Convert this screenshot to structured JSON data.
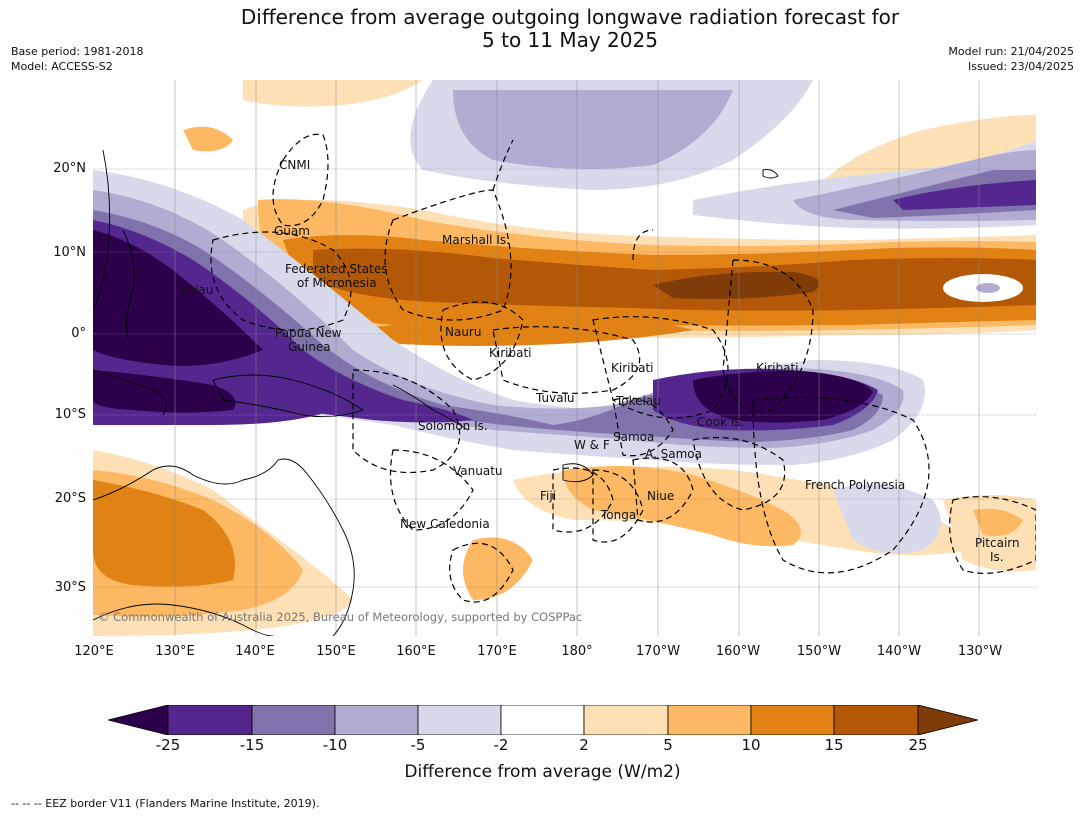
{
  "title": {
    "line1": "Difference from average outgoing longwave radiation forecast for",
    "line2": "5 to 11 May 2025"
  },
  "meta_left": {
    "base_period": "Base period: 1981-2018",
    "model": "Model: ACCESS-S2"
  },
  "meta_right": {
    "model_run": "Model run: 21/04/2025",
    "issued": "Issued: 23/04/2025"
  },
  "latitude_labels": [
    "20°N",
    "10°N",
    "0°",
    "10°S",
    "20°S",
    "30°S"
  ],
  "longitude_labels": [
    "120°E",
    "130°E",
    "140°E",
    "150°E",
    "160°E",
    "170°E",
    "180°",
    "170°W",
    "160°W",
    "150°W",
    "140°W",
    "130°W"
  ],
  "places": [
    "CNMI",
    "Guam",
    "Marshall Is.",
    "Federated States",
    "of Micronesia",
    "Palau",
    "Papua New",
    "Guinea",
    "Nauru",
    "Kiribati",
    "Kiribati",
    "Kiribati",
    "Tuvalu",
    "Tokelau",
    "Cook Is.",
    "Solomon Is.",
    "W & F",
    "Samoa",
    "A. Samoa",
    "Vanuatu",
    "Fiji",
    "Niue",
    "Tonga",
    "French Polynesia",
    "New Caledonia",
    "Pitcairn",
    "Is."
  ],
  "copyright": "© Commonwealth of Australia 2025, Bureau of Meteorology, supported by COSPPac",
  "colorbar": {
    "ticks": [
      "-25",
      "-15",
      "-10",
      "-5",
      "-2",
      "2",
      "5",
      "10",
      "15",
      "25"
    ],
    "label": "Difference from average (W/m2)",
    "colors": {
      "below_-25": "#2d004b",
      "-25_-15": "#54278f",
      "-15_-10": "#8073ac",
      "-10_-5": "#b2abd2",
      "-5_-2": "#d8daeb",
      "-2_2": "#ffffff",
      "2_5": "#fee0b6",
      "5_10": "#fdb863",
      "10_15": "#e08214",
      "15_25": "#b35806",
      "above_25": "#7f3b08"
    }
  },
  "footnote": "-- -- -- EEZ border V11 (Flanders Marine Institute, 2019)."
}
